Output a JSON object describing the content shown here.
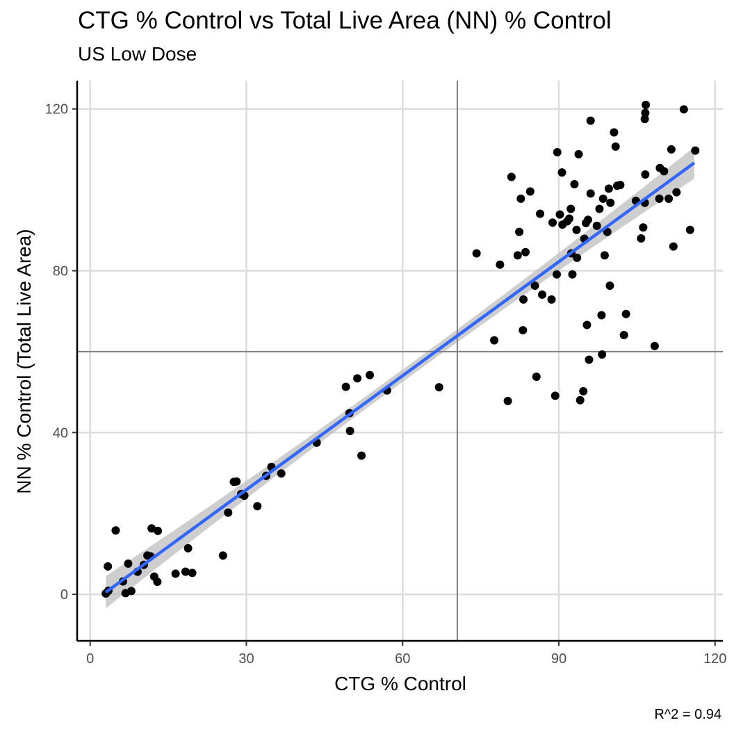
{
  "chart_data": {
    "type": "scatter",
    "title": "CTG % Control vs Total Live Area (NN) % Control",
    "subtitle": "US Low Dose",
    "xlabel": "CTG % Control",
    "ylabel": "NN % Control (Total Live Area)",
    "caption": "R^2 = 0.94",
    "xlim": [
      -2.5,
      121.5
    ],
    "ylim": [
      -11.5,
      127
    ],
    "xticks": [
      0,
      30,
      60,
      90,
      120
    ],
    "yticks": [
      0,
      40,
      80,
      120
    ],
    "grid": true,
    "reference_lines": {
      "vertical_x": 70.5,
      "horizontal_y": 60
    },
    "fit": {
      "x_range": [
        3,
        116
      ],
      "intercept": -2.31,
      "slope": 0.9394,
      "band_half_width_ends": 4.0,
      "band_half_width_mid": 1.5,
      "band_center_x": 60
    },
    "colors": {
      "points": "#000000",
      "fit_line": "#3366ff",
      "band": "#bdbdbd",
      "refline": "#7f7f7f",
      "grid": "#dcdcdc"
    },
    "points": [
      [
        3,
        0.2
      ],
      [
        3.4,
        6.9
      ],
      [
        3.5,
        0.9
      ],
      [
        4.9,
        15.8
      ],
      [
        6.3,
        3.2
      ],
      [
        6.8,
        0.3
      ],
      [
        7.3,
        7.6
      ],
      [
        7.9,
        0.8
      ],
      [
        9.1,
        5.6
      ],
      [
        10.3,
        7.3
      ],
      [
        11,
        9.6
      ],
      [
        11.6,
        9.4
      ],
      [
        11.8,
        16.3
      ],
      [
        12.3,
        4.4
      ],
      [
        13,
        15.7
      ],
      [
        12.9,
        3.1
      ],
      [
        16.4,
        5.1
      ],
      [
        18.3,
        5.6
      ],
      [
        18.8,
        11.4
      ],
      [
        19.6,
        5.3
      ],
      [
        25.5,
        9.6
      ],
      [
        26.5,
        20.2
      ],
      [
        27.6,
        27.8
      ],
      [
        28.1,
        27.9
      ],
      [
        29,
        24.8
      ],
      [
        29.6,
        24.4
      ],
      [
        32.1,
        21.8
      ],
      [
        33.8,
        29.3
      ],
      [
        34.8,
        31.5
      ],
      [
        36.7,
        29.9
      ],
      [
        43.5,
        37.5
      ],
      [
        49.1,
        51.3
      ],
      [
        49.8,
        44.8
      ],
      [
        49.9,
        40.4
      ],
      [
        51.3,
        53.4
      ],
      [
        52.1,
        34.3
      ],
      [
        53.7,
        54.2
      ],
      [
        57,
        50.4
      ],
      [
        67,
        51.2
      ],
      [
        74.2,
        84.3
      ],
      [
        77.6,
        62.8
      ],
      [
        78.7,
        81.5
      ],
      [
        80.2,
        47.8
      ],
      [
        80.9,
        103.2
      ],
      [
        82.1,
        83.8
      ],
      [
        82.4,
        89.6
      ],
      [
        82.7,
        97.8
      ],
      [
        83.1,
        65.3
      ],
      [
        83.2,
        72.9
      ],
      [
        83.6,
        84.6
      ],
      [
        84.5,
        99.6
      ],
      [
        85.4,
        76.3
      ],
      [
        85.7,
        53.8
      ],
      [
        86.4,
        94.1
      ],
      [
        86.8,
        74.1
      ],
      [
        88.6,
        72.9
      ],
      [
        88.8,
        91.9
      ],
      [
        89.3,
        49.1
      ],
      [
        89.6,
        79.1
      ],
      [
        89.7,
        109.3
      ],
      [
        90.2,
        93.9
      ],
      [
        90.6,
        104.3
      ],
      [
        90.7,
        91.4
      ],
      [
        91.6,
        92.2
      ],
      [
        92,
        92.9
      ],
      [
        92.3,
        95.3
      ],
      [
        92.4,
        84.3
      ],
      [
        92.6,
        79.1
      ],
      [
        93,
        101.4
      ],
      [
        93.4,
        90.1
      ],
      [
        93.5,
        83.2
      ],
      [
        93.8,
        108.8
      ],
      [
        94.1,
        48.0
      ],
      [
        94.7,
        50.2
      ],
      [
        94.9,
        87.9
      ],
      [
        95.2,
        91.8
      ],
      [
        95.4,
        66.6
      ],
      [
        95.6,
        92.6
      ],
      [
        95.8,
        58.0
      ],
      [
        96.1,
        117.1
      ],
      [
        96.1,
        99.1
      ],
      [
        97.3,
        91.1
      ],
      [
        97.8,
        95.3
      ],
      [
        98.2,
        69.0
      ],
      [
        98.3,
        59.3
      ],
      [
        98.5,
        97.8
      ],
      [
        98.8,
        83.8
      ],
      [
        99.3,
        89.6
      ],
      [
        99.6,
        100.3
      ],
      [
        99.9,
        96.8
      ],
      [
        99.8,
        76.3
      ],
      [
        100.6,
        114.2
      ],
      [
        100.9,
        110.7
      ],
      [
        101.2,
        101.0
      ],
      [
        101.8,
        101.2
      ],
      [
        102.5,
        64.1
      ],
      [
        102.9,
        69.3
      ],
      [
        104.8,
        97.3
      ],
      [
        105.8,
        88.0
      ],
      [
        106.2,
        90.7
      ],
      [
        106.5,
        96.8
      ],
      [
        106.5,
        117.5
      ],
      [
        106.6,
        119.0
      ],
      [
        106.7,
        121.0
      ],
      [
        106.6,
        103.8
      ],
      [
        108.4,
        61.4
      ],
      [
        109.3,
        97.8
      ],
      [
        109.4,
        105.4
      ],
      [
        110.2,
        104.6
      ],
      [
        111.1,
        97.8
      ],
      [
        111.6,
        110.0
      ],
      [
        112,
        86.0
      ],
      [
        112.6,
        99.4
      ],
      [
        114,
        119.9
      ],
      [
        115.2,
        90.1
      ],
      [
        116.2,
        109.7
      ]
    ]
  }
}
